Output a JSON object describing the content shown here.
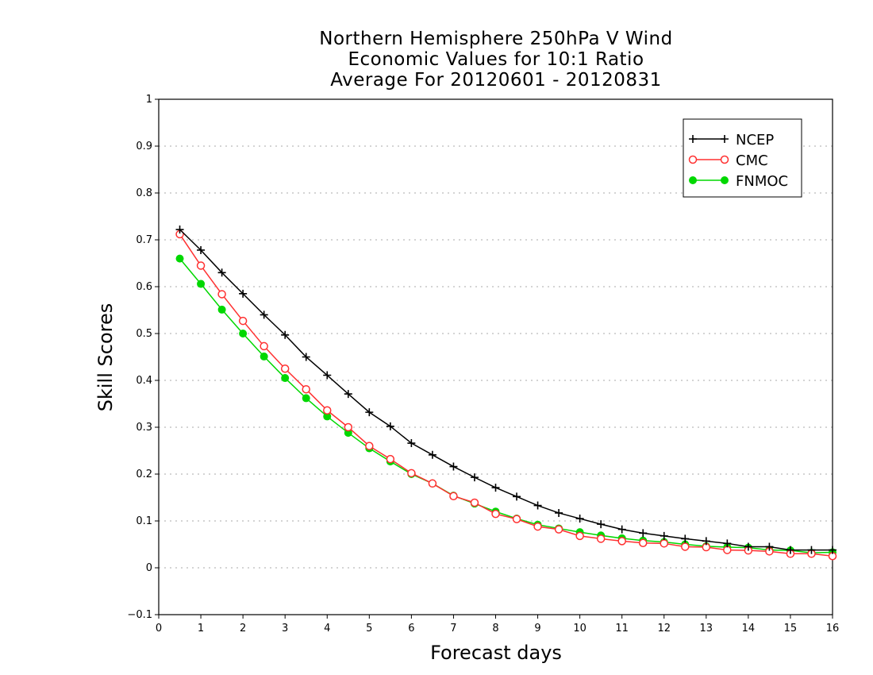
{
  "chart_data": {
    "type": "line",
    "title": [
      "Northern Hemisphere 250hPa V Wind",
      "Economic Values for 10:1 Ratio",
      "Average For 20120601 - 20120831"
    ],
    "xlabel": "Forecast days",
    "ylabel": "Skill Scores",
    "xlim": [
      0,
      16
    ],
    "ylim": [
      -0.1,
      1
    ],
    "xticks": [
      "0",
      "1",
      "2",
      "3",
      "4",
      "5",
      "6",
      "7",
      "8",
      "9",
      "10",
      "11",
      "12",
      "13",
      "14",
      "15",
      "16"
    ],
    "yticks": [
      "−0.1",
      "0",
      "0.1",
      "0.2",
      "0.3",
      "0.4",
      "0.5",
      "0.6",
      "0.7",
      "0.8",
      "0.9",
      "1"
    ],
    "grid": "horizontal-dotted",
    "legend_position": "top-right",
    "x": [
      0.5,
      1,
      1.5,
      2,
      2.5,
      3,
      3.5,
      4,
      4.5,
      5,
      5.5,
      6,
      6.5,
      7,
      7.5,
      8,
      8.5,
      9,
      9.5,
      10,
      10.5,
      11,
      11.5,
      12,
      12.5,
      13,
      13.5,
      14,
      14.5,
      15,
      15.5,
      16
    ],
    "series": [
      {
        "name": "NCEP",
        "color": "#000000",
        "marker": "plus",
        "values": [
          0.722,
          0.678,
          0.63,
          0.585,
          0.54,
          0.497,
          0.45,
          0.411,
          0.371,
          0.332,
          0.302,
          0.266,
          0.241,
          0.216,
          0.193,
          0.171,
          0.152,
          0.133,
          0.117,
          0.105,
          0.093,
          0.082,
          0.074,
          0.068,
          0.062,
          0.057,
          0.052,
          0.045,
          0.045,
          0.038,
          0.038,
          0.038
        ]
      },
      {
        "name": "CMC",
        "color": "#ff3030",
        "marker": "open-circle",
        "values": [
          0.712,
          0.645,
          0.584,
          0.527,
          0.473,
          0.425,
          0.381,
          0.336,
          0.3,
          0.26,
          0.232,
          0.202,
          0.18,
          0.153,
          0.139,
          0.115,
          0.104,
          0.088,
          0.082,
          0.068,
          0.062,
          0.057,
          0.053,
          0.052,
          0.045,
          0.044,
          0.038,
          0.037,
          0.035,
          0.03,
          0.03,
          0.025
        ]
      },
      {
        "name": "FNMOC",
        "color": "#00d800",
        "marker": "filled-circle",
        "values": [
          0.66,
          0.606,
          0.551,
          0.5,
          0.451,
          0.405,
          0.362,
          0.323,
          0.288,
          0.255,
          0.227,
          0.2,
          0.18,
          0.154,
          0.137,
          0.12,
          0.105,
          0.092,
          0.084,
          0.076,
          0.069,
          0.063,
          0.058,
          0.055,
          0.05,
          0.046,
          0.044,
          0.043,
          0.038,
          0.037,
          0.032,
          0.033
        ]
      }
    ]
  }
}
